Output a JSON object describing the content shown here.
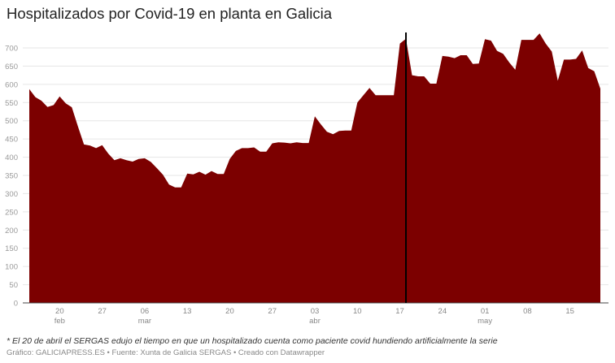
{
  "title": "Hospitalizados por Covid-19 en planta en Galicia",
  "note": "* El 20 de abril el SERGAS edujo el tiempo en que un hospitalizado cuenta como paciente covid hundiendo artificialmente la serie",
  "credits": "Gráfico: GALICIAPRESS.ES • Fuente: Xunta de Galicia SERGAS • Creado con Datawrapper",
  "chart_data": {
    "type": "area",
    "title": "Hospitalizados por Covid-19 en planta en Galicia",
    "xlabel": "",
    "ylabel": "",
    "color": "#7c0000",
    "grid": true,
    "ylim": [
      0,
      740
    ],
    "yticks": [
      0,
      50,
      100,
      150,
      200,
      250,
      300,
      350,
      400,
      450,
      500,
      550,
      600,
      650,
      700
    ],
    "xticks": [
      {
        "date": "2021-02-20",
        "label": "20",
        "month": "feb"
      },
      {
        "date": "2021-02-27",
        "label": "27",
        "month": ""
      },
      {
        "date": "2021-03-06",
        "label": "06",
        "month": "mar"
      },
      {
        "date": "2021-03-13",
        "label": "13",
        "month": ""
      },
      {
        "date": "2021-03-20",
        "label": "20",
        "month": ""
      },
      {
        "date": "2021-03-27",
        "label": "27",
        "month": ""
      },
      {
        "date": "2021-04-03",
        "label": "03",
        "month": "abr"
      },
      {
        "date": "2021-04-10",
        "label": "10",
        "month": ""
      },
      {
        "date": "2021-04-17",
        "label": "17",
        "month": ""
      },
      {
        "date": "2021-04-24",
        "label": "24",
        "month": ""
      },
      {
        "date": "2021-05-01",
        "label": "01",
        "month": "may"
      },
      {
        "date": "2021-05-08",
        "label": "08",
        "month": ""
      },
      {
        "date": "2021-05-15",
        "label": "15",
        "month": ""
      }
    ],
    "start_date": "2021-02-15",
    "values": [
      587,
      565,
      555,
      538,
      543,
      567,
      548,
      537,
      485,
      435,
      432,
      425,
      433,
      410,
      392,
      397,
      392,
      388,
      395,
      397,
      387,
      370,
      352,
      325,
      317,
      317,
      355,
      353,
      360,
      352,
      362,
      354,
      354,
      395,
      417,
      425,
      425,
      427,
      415,
      415,
      438,
      441,
      440,
      438,
      441,
      439,
      439,
      512,
      490,
      470,
      463,
      472,
      473,
      473,
      550,
      570,
      590,
      570,
      570,
      570,
      570,
      712,
      725,
      625,
      622,
      622,
      602,
      602,
      678,
      676,
      672,
      680,
      680,
      656,
      657,
      724,
      720,
      692,
      684,
      660,
      640,
      722,
      722,
      722,
      740,
      712,
      690,
      610,
      668,
      668,
      670,
      693,
      645,
      636,
      588
    ],
    "annotation_line_date": "2021-04-18"
  }
}
